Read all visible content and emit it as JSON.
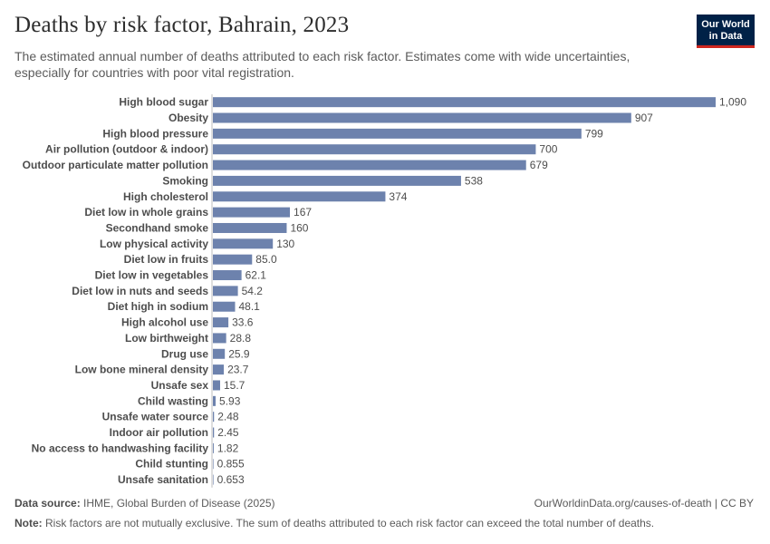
{
  "header": {
    "title": "Deaths by risk factor, Bahrain, 2023",
    "subtitle": "The estimated annual number of deaths attributed to each risk factor. Estimates come with wide uncertainties, especially for countries with poor vital registration.",
    "logo_text": "Our World\nin Data"
  },
  "footer": {
    "source_label": "Data source:",
    "source_text": "IHME, Global Burden of Disease (2025)",
    "license": "OurWorldinData.org/causes-of-death | CC BY",
    "note_label": "Note:",
    "note_text": "Risk factors are not mutually exclusive. The sum of deaths attributed to each risk factor can exceed the total number of deaths."
  },
  "colors": {
    "bar": "#6d82ad",
    "logo_bg": "#002147",
    "logo_accent": "#ce261e"
  },
  "chart_data": {
    "type": "bar",
    "orientation": "horizontal",
    "title": "Deaths by risk factor, Bahrain, 2023",
    "xlabel": "",
    "ylabel": "",
    "xlim": [
      0,
      1090
    ],
    "categories": [
      "High blood sugar",
      "Obesity",
      "High blood pressure",
      "Air pollution (outdoor & indoor)",
      "Outdoor particulate matter pollution",
      "Smoking",
      "High cholesterol",
      "Diet low in whole grains",
      "Secondhand smoke",
      "Low physical activity",
      "Diet low in fruits",
      "Diet low in vegetables",
      "Diet low in nuts and seeds",
      "Diet high in sodium",
      "High alcohol use",
      "Low birthweight",
      "Drug use",
      "Low bone mineral density",
      "Unsafe sex",
      "Child wasting",
      "Unsafe water source",
      "Indoor air pollution",
      "No access to handwashing facility",
      "Child stunting",
      "Unsafe sanitation"
    ],
    "values": [
      1090,
      907,
      799,
      700,
      679,
      538,
      374,
      167,
      160,
      130,
      85.0,
      62.1,
      54.2,
      48.1,
      33.6,
      28.8,
      25.9,
      23.7,
      15.7,
      5.93,
      2.48,
      2.45,
      1.82,
      0.855,
      0.653
    ],
    "value_labels": [
      "1,090",
      "907",
      "799",
      "700",
      "679",
      "538",
      "374",
      "167",
      "160",
      "130",
      "85.0",
      "62.1",
      "54.2",
      "48.1",
      "33.6",
      "28.8",
      "25.9",
      "23.7",
      "15.7",
      "5.93",
      "2.48",
      "2.45",
      "1.82",
      "0.855",
      "0.653"
    ]
  }
}
